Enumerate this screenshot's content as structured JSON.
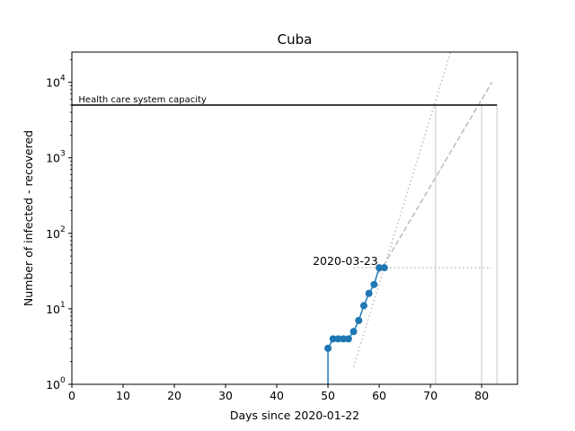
{
  "chart_data": {
    "type": "line",
    "title": "Cuba",
    "xlabel": "Days since 2020-01-22",
    "ylabel": "Number of infected - recovered",
    "xlim": [
      0,
      87
    ],
    "ylim_log10": [
      0,
      4.4
    ],
    "y_scale": "log",
    "x_ticks": [
      0,
      10,
      20,
      30,
      40,
      50,
      60,
      70,
      80
    ],
    "x_tick_labels": [
      "0",
      "10",
      "20",
      "30",
      "40",
      "50",
      "60",
      "70",
      "80"
    ],
    "y_ticks": [
      1,
      10,
      100,
      1000,
      10000
    ],
    "y_tick_labels": [
      "10",
      "10",
      "10",
      "10",
      "10"
    ],
    "y_tick_exponents": [
      "0",
      "1",
      "2",
      "3",
      "4"
    ],
    "grid": false,
    "series": [
      {
        "x": [
          50,
          51,
          52,
          53,
          54,
          55,
          56,
          57,
          58,
          59,
          60,
          61
        ],
        "y": [
          3,
          4,
          4,
          4,
          4,
          5,
          7,
          11,
          16,
          21,
          35,
          35
        ],
        "color": "#1f77b4",
        "marker": "circle"
      }
    ],
    "capacity": {
      "value": 5000,
      "label": "Health care system capacity",
      "x_range": [
        0,
        83
      ]
    },
    "annotation": {
      "text": "2020-03-23",
      "x": 61,
      "y": 35
    },
    "projections": [
      {
        "style": "dotted",
        "x": [
          55,
          74
        ],
        "y": [
          1.7,
          26000
        ]
      },
      {
        "style": "dashed",
        "x": [
          60,
          82
        ],
        "y": [
          30,
          10000
        ]
      }
    ],
    "reference_lines": {
      "horizontal": {
        "y": 35,
        "x_range": [
          55,
          82
        ]
      },
      "vertical_x": [
        71,
        80,
        83
      ]
    }
  },
  "colors": {
    "series": "#1f77b4",
    "capacity": "#000000",
    "projection": "#bbbbbb",
    "reference": "#d9d9d9"
  }
}
